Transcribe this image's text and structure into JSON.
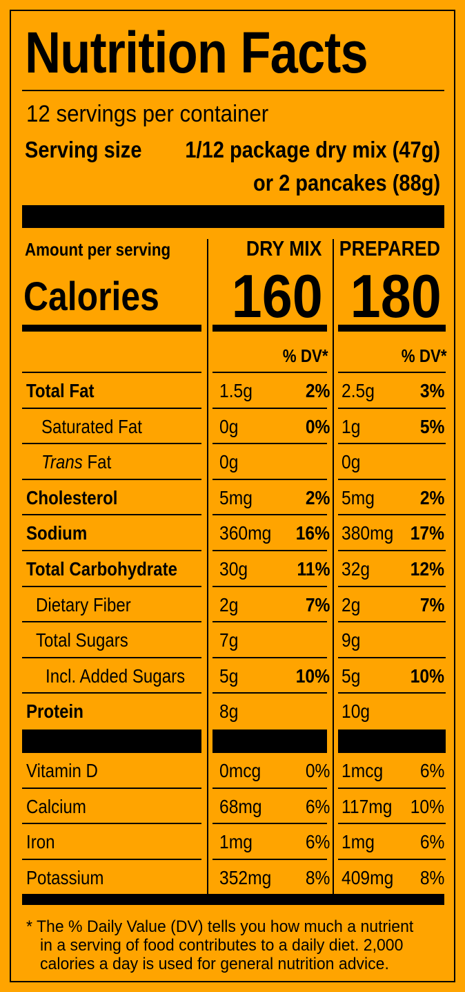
{
  "title": "Nutrition Facts",
  "servings_per_container": "12 servings per container",
  "serving_size_label": "Serving size",
  "serving_size_value_1": "1/12 package dry mix (47g)",
  "serving_size_value_2": "or 2 pancakes (88g)",
  "amount_per_serving": "Amount per serving",
  "calories_label": "Calories",
  "columns": [
    {
      "header": "DRY MIX",
      "calories": "160",
      "dv_header": "% DV*"
    },
    {
      "header": "PREPARED",
      "calories": "180",
      "dv_header": "% DV*"
    }
  ],
  "nutrients": [
    {
      "label": "Total Fat",
      "bold": true,
      "indent": 0,
      "dry": "1.5g",
      "dry_dv": "2%",
      "prep": "2.5g",
      "prep_dv": "3%"
    },
    {
      "label": "Saturated Fat",
      "bold": false,
      "indent": 1,
      "dry": "0g",
      "dry_dv": "0%",
      "prep": "1g",
      "prep_dv": "5%"
    },
    {
      "label_italic": "Trans",
      "label": "Fat",
      "bold": false,
      "indent": 1,
      "dry": "0g",
      "dry_dv": "",
      "prep": "0g",
      "prep_dv": ""
    },
    {
      "label": "Cholesterol",
      "bold": true,
      "indent": 0,
      "dry": "5mg",
      "dry_dv": "2%",
      "prep": "5mg",
      "prep_dv": "2%"
    },
    {
      "label": "Sodium",
      "bold": true,
      "indent": 0,
      "dry": "360mg",
      "dry_dv": "16%",
      "prep": "380mg",
      "prep_dv": "17%"
    },
    {
      "label": "Total Carbohydrate",
      "bold": true,
      "indent": 0,
      "dry": "30g",
      "dry_dv": "11%",
      "prep": "32g",
      "prep_dv": "12%"
    },
    {
      "label": "Dietary Fiber",
      "bold": false,
      "indent": 1,
      "dry": "2g",
      "dry_dv": "7%",
      "prep": "2g",
      "prep_dv": "7%"
    },
    {
      "label": "Total Sugars",
      "bold": false,
      "indent": 1,
      "dry": "7g",
      "dry_dv": "",
      "prep": "9g",
      "prep_dv": ""
    },
    {
      "label": "Incl. Added Sugars",
      "bold": false,
      "indent": 2,
      "dry": "5g",
      "dry_dv": "10%",
      "prep": "5g",
      "prep_dv": "10%"
    },
    {
      "label": "Protein",
      "bold": true,
      "indent": 0,
      "dry": "8g",
      "dry_dv": "",
      "prep": "10g",
      "prep_dv": ""
    }
  ],
  "vitamins": [
    {
      "label": "Vitamin D",
      "dry": "0mcg",
      "dry_dv": "0%",
      "prep": "1mcg",
      "prep_dv": "6%"
    },
    {
      "label": "Calcium",
      "dry": "68mg",
      "dry_dv": "6%",
      "prep": "117mg",
      "prep_dv": "10%"
    },
    {
      "label": "Iron",
      "dry": "1mg",
      "dry_dv": "6%",
      "prep": "1mg",
      "prep_dv": "6%"
    },
    {
      "label": "Potassium",
      "dry": "352mg",
      "dry_dv": "8%",
      "prep": "409mg",
      "prep_dv": "8%"
    }
  ],
  "footnote": [
    "*  The % Daily Value (DV) tells you how much a nutrient",
    "in a serving of food contributes to a daily diet. 2,000",
    "calories a day is used for general nutrition advice."
  ],
  "colors": {
    "background": "#FFA400",
    "ink": "#000000"
  }
}
